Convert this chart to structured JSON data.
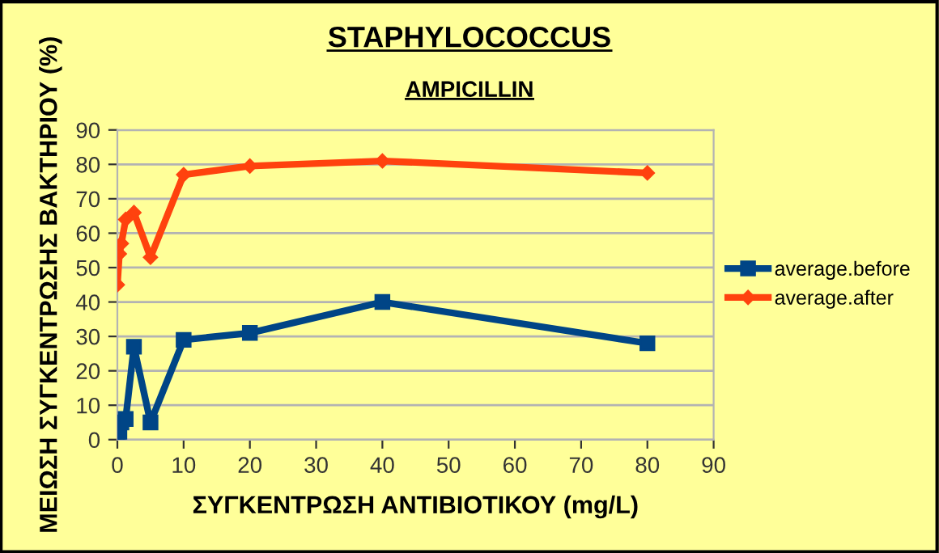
{
  "chart_data": {
    "type": "line",
    "title": "STAPHYLOCOCCUS",
    "subtitle": "AMPICILLIN",
    "xlabel": "ΣΥΓΚΕΝΤΡΩΣΗ ΑΝΤΙΒΙΟΤΙΚΟΥ (mg/L)",
    "ylabel": "ΜΕΙΩΣΗ ΣΥΓΚΕΝΤΡΩΣΗΣ ΒΑΚΤΗΡΙΟΥ (%)",
    "x": [
      0,
      0.3,
      0.6,
      1.25,
      2.5,
      5,
      10,
      20,
      40,
      80
    ],
    "series": [
      {
        "name": "average.before",
        "color": "#004586",
        "marker": "square",
        "values": [
          0,
          2,
          5,
          6,
          27,
          5,
          29,
          31,
          40,
          28
        ]
      },
      {
        "name": "average.after",
        "color": "#ff420e",
        "marker": "diamond",
        "values": [
          45,
          54,
          57,
          64,
          66,
          53,
          77,
          79.5,
          81,
          77.5
        ]
      }
    ],
    "xlim": [
      0,
      90
    ],
    "xticks": [
      0,
      10,
      20,
      30,
      40,
      50,
      60,
      70,
      80,
      90
    ],
    "ylim": [
      0,
      90
    ],
    "yticks": [
      0,
      10,
      20,
      30,
      40,
      50,
      60,
      70,
      80,
      90
    ],
    "grid": "y",
    "legend": "right",
    "line_style": "solid"
  }
}
